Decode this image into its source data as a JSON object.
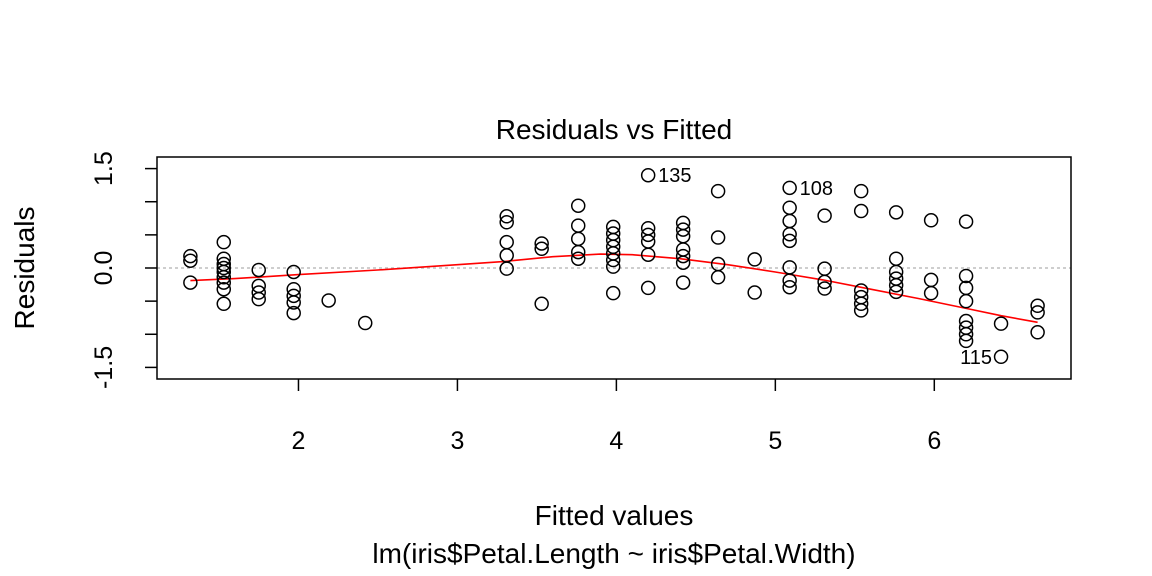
{
  "chart_data": {
    "type": "scatter",
    "title": "Residuals vs Fitted",
    "xlabel": "Fitted values",
    "subtitle": "lm(iris$Petal.Length ~ iris$Petal.Width)",
    "ylabel": "Residuals",
    "xlim": [
      1.11,
      6.86
    ],
    "ylim": [
      -1.675,
      1.675
    ],
    "xticks": [
      2,
      3,
      4,
      5,
      6
    ],
    "yticks": [
      -1.5,
      -1.0,
      -0.5,
      0.0,
      0.5,
      1.0,
      1.5
    ],
    "ytick_labels": [
      "-1.5",
      "",
      "",
      "0.0",
      "",
      "",
      "1.5"
    ],
    "reference_line_y": 0,
    "colors": {
      "points": "#000000",
      "smoother": "#ff0000",
      "reference": "#bebebe"
    },
    "points": [
      {
        "x": 1.32,
        "y": 0.18
      },
      {
        "x": 1.32,
        "y": 0.11
      },
      {
        "x": 1.32,
        "y": -0.22
      },
      {
        "x": 1.53,
        "y": 0.39
      },
      {
        "x": 1.53,
        "y": 0.14
      },
      {
        "x": 1.53,
        "y": 0.06
      },
      {
        "x": 1.53,
        "y": 0.0
      },
      {
        "x": 1.53,
        "y": -0.06
      },
      {
        "x": 1.53,
        "y": -0.14
      },
      {
        "x": 1.53,
        "y": -0.22
      },
      {
        "x": 1.53,
        "y": -0.32
      },
      {
        "x": 1.53,
        "y": -0.54
      },
      {
        "x": 1.75,
        "y": -0.03
      },
      {
        "x": 1.75,
        "y": -0.27
      },
      {
        "x": 1.75,
        "y": -0.37
      },
      {
        "x": 1.75,
        "y": -0.47
      },
      {
        "x": 1.97,
        "y": -0.06
      },
      {
        "x": 1.97,
        "y": -0.32
      },
      {
        "x": 1.97,
        "y": -0.42
      },
      {
        "x": 1.97,
        "y": -0.52
      },
      {
        "x": 1.97,
        "y": -0.68
      },
      {
        "x": 2.19,
        "y": -0.49
      },
      {
        "x": 2.42,
        "y": -0.83
      },
      {
        "x": 3.31,
        "y": 0.78
      },
      {
        "x": 3.31,
        "y": 0.69
      },
      {
        "x": 3.31,
        "y": 0.39
      },
      {
        "x": 3.31,
        "y": 0.19
      },
      {
        "x": 3.31,
        "y": -0.01
      },
      {
        "x": 3.53,
        "y": 0.37
      },
      {
        "x": 3.53,
        "y": 0.29
      },
      {
        "x": 3.53,
        "y": -0.54
      },
      {
        "x": 3.76,
        "y": 0.94
      },
      {
        "x": 3.76,
        "y": 0.64
      },
      {
        "x": 3.76,
        "y": 0.44
      },
      {
        "x": 3.76,
        "y": 0.24
      },
      {
        "x": 3.76,
        "y": 0.14
      },
      {
        "x": 3.98,
        "y": 0.62
      },
      {
        "x": 3.98,
        "y": 0.52
      },
      {
        "x": 3.98,
        "y": 0.42
      },
      {
        "x": 3.98,
        "y": 0.32
      },
      {
        "x": 3.98,
        "y": 0.22
      },
      {
        "x": 3.98,
        "y": 0.12
      },
      {
        "x": 3.98,
        "y": 0.02
      },
      {
        "x": 3.98,
        "y": -0.38
      },
      {
        "x": 4.2,
        "y": 1.4,
        "label": "135"
      },
      {
        "x": 4.2,
        "y": 0.6
      },
      {
        "x": 4.2,
        "y": 0.5
      },
      {
        "x": 4.2,
        "y": 0.4
      },
      {
        "x": 4.2,
        "y": 0.2
      },
      {
        "x": 4.2,
        "y": -0.3
      },
      {
        "x": 4.42,
        "y": 0.68
      },
      {
        "x": 4.42,
        "y": 0.58
      },
      {
        "x": 4.42,
        "y": 0.48
      },
      {
        "x": 4.42,
        "y": 0.28
      },
      {
        "x": 4.42,
        "y": 0.18
      },
      {
        "x": 4.42,
        "y": 0.08
      },
      {
        "x": 4.42,
        "y": -0.22
      },
      {
        "x": 4.64,
        "y": 1.16
      },
      {
        "x": 4.64,
        "y": 0.46
      },
      {
        "x": 4.64,
        "y": 0.06
      },
      {
        "x": 4.64,
        "y": -0.14
      },
      {
        "x": 4.87,
        "y": 0.13
      },
      {
        "x": 4.87,
        "y": -0.37
      },
      {
        "x": 5.09,
        "y": 1.21,
        "label": "108"
      },
      {
        "x": 5.09,
        "y": 0.91
      },
      {
        "x": 5.09,
        "y": 0.71
      },
      {
        "x": 5.09,
        "y": 0.51
      },
      {
        "x": 5.09,
        "y": 0.41
      },
      {
        "x": 5.09,
        "y": 0.01
      },
      {
        "x": 5.09,
        "y": -0.19
      },
      {
        "x": 5.09,
        "y": -0.29
      },
      {
        "x": 5.31,
        "y": 0.79
      },
      {
        "x": 5.31,
        "y": -0.01
      },
      {
        "x": 5.31,
        "y": -0.21
      },
      {
        "x": 5.31,
        "y": -0.31
      },
      {
        "x": 5.54,
        "y": 1.16
      },
      {
        "x": 5.54,
        "y": 0.86
      },
      {
        "x": 5.54,
        "y": -0.34
      },
      {
        "x": 5.54,
        "y": -0.44
      },
      {
        "x": 5.54,
        "y": -0.54
      },
      {
        "x": 5.54,
        "y": -0.64
      },
      {
        "x": 5.76,
        "y": 0.84
      },
      {
        "x": 5.76,
        "y": 0.14
      },
      {
        "x": 5.76,
        "y": -0.06
      },
      {
        "x": 5.76,
        "y": -0.16
      },
      {
        "x": 5.76,
        "y": -0.26
      },
      {
        "x": 5.76,
        "y": -0.36
      },
      {
        "x": 5.98,
        "y": 0.72
      },
      {
        "x": 5.98,
        "y": -0.18
      },
      {
        "x": 5.98,
        "y": -0.38
      },
      {
        "x": 6.2,
        "y": 0.7
      },
      {
        "x": 6.2,
        "y": -0.12
      },
      {
        "x": 6.2,
        "y": -0.3
      },
      {
        "x": 6.2,
        "y": -0.5
      },
      {
        "x": 6.2,
        "y": -0.8
      },
      {
        "x": 6.2,
        "y": -0.9
      },
      {
        "x": 6.2,
        "y": -1.0
      },
      {
        "x": 6.2,
        "y": -1.1
      },
      {
        "x": 6.42,
        "y": -0.84
      },
      {
        "x": 6.42,
        "y": -1.34,
        "label": "115"
      },
      {
        "x": 6.65,
        "y": -0.57
      },
      {
        "x": 6.65,
        "y": -0.67
      },
      {
        "x": 6.65,
        "y": -0.97
      }
    ],
    "smoother": [
      {
        "x": 1.32,
        "y": -0.19
      },
      {
        "x": 1.6,
        "y": -0.16
      },
      {
        "x": 2.0,
        "y": -0.1
      },
      {
        "x": 2.5,
        "y": -0.03
      },
      {
        "x": 3.0,
        "y": 0.05
      },
      {
        "x": 3.3,
        "y": 0.1
      },
      {
        "x": 3.6,
        "y": 0.17
      },
      {
        "x": 3.9,
        "y": 0.21
      },
      {
        "x": 4.1,
        "y": 0.2
      },
      {
        "x": 4.4,
        "y": 0.14
      },
      {
        "x": 4.7,
        "y": 0.05
      },
      {
        "x": 5.0,
        "y": -0.06
      },
      {
        "x": 5.3,
        "y": -0.18
      },
      {
        "x": 5.6,
        "y": -0.32
      },
      {
        "x": 5.9,
        "y": -0.46
      },
      {
        "x": 6.2,
        "y": -0.61
      },
      {
        "x": 6.42,
        "y": -0.72
      },
      {
        "x": 6.65,
        "y": -0.82
      }
    ]
  }
}
